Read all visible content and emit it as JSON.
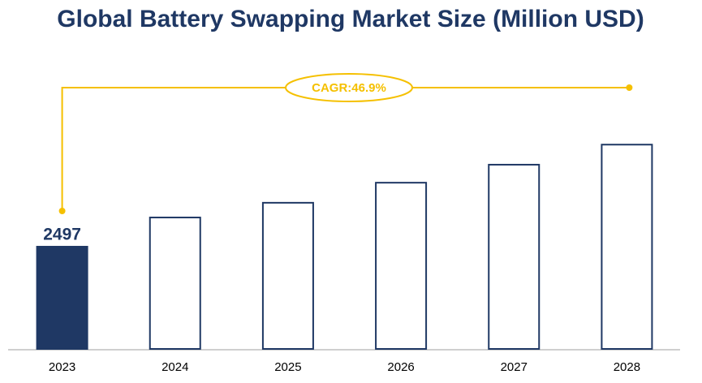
{
  "chart_data": {
    "type": "bar",
    "title": "Global Battery Swapping Market Size (Million USD)",
    "categories": [
      "2023",
      "2024",
      "2025",
      "2026",
      "2027",
      "2028"
    ],
    "values": [
      2497,
      3210,
      3570,
      4060,
      4500,
      4990
    ],
    "color": "#1f3864",
    "highlight_index": 0,
    "ylim": [
      0,
      5500
    ],
    "annotation": "CAGR:46.9%",
    "annotation_color": "#f5c000"
  }
}
